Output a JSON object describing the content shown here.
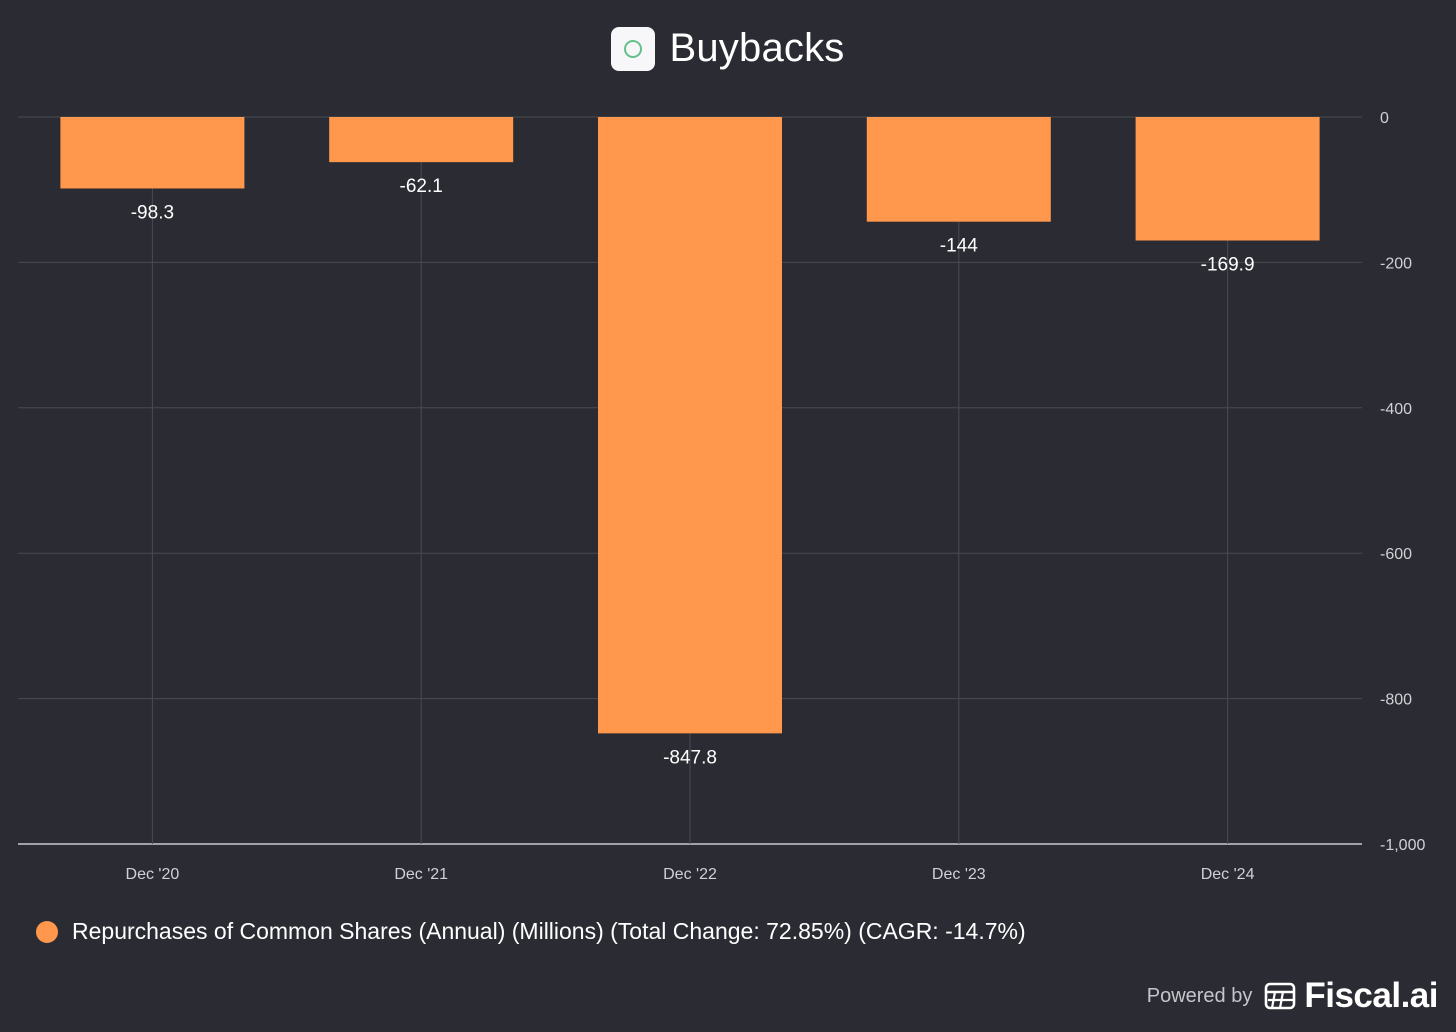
{
  "header": {
    "title": "Buybacks",
    "logo_icon": "circle-logo-icon"
  },
  "chart_data": {
    "type": "bar",
    "title": "Buybacks",
    "categories": [
      "Dec '20",
      "Dec '21",
      "Dec '22",
      "Dec '23",
      "Dec '24"
    ],
    "values": [
      -98.3,
      -62.1,
      -847.8,
      -144,
      -169.9
    ],
    "data_labels": [
      "-98.3",
      "-62.1",
      "-847.8",
      "-144",
      "-169.9"
    ],
    "ylim": [
      -1000,
      0
    ],
    "yticks": [
      0,
      -200,
      -400,
      -600,
      -800,
      -1000
    ],
    "ytick_labels": [
      "0",
      "-200",
      "-400",
      "-600",
      "-800",
      "-1,000"
    ],
    "y_axis_position": "right",
    "grid": true,
    "series": [
      {
        "name": "Repurchases of Common Shares (Annual) (Millions) (Total Change: 72.85%) (CAGR: -14.7%)",
        "color": "#ff974c"
      }
    ]
  },
  "legend": {
    "label": "Repurchases of Common Shares (Annual) (Millions) (Total Change: 72.85%) (CAGR: -14.7%)",
    "color": "#ff974c"
  },
  "footer": {
    "powered_by": "Powered by",
    "brand": "Fiscal.ai",
    "brand_icon": "calculator-icon"
  },
  "colors": {
    "background": "#2b2c33",
    "grid": "#4a4b53",
    "bar": "#ff974c",
    "text": "#ffffff",
    "axis_text": "#d0d1d6"
  }
}
